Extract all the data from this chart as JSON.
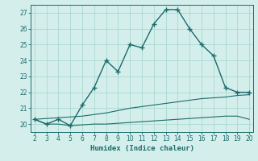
{
  "x": [
    2,
    3,
    4,
    5,
    6,
    7,
    8,
    9,
    10,
    11,
    12,
    13,
    14,
    15,
    16,
    17,
    18,
    19,
    20
  ],
  "y_main": [
    20.3,
    20.0,
    20.3,
    19.9,
    21.2,
    22.3,
    24.0,
    23.3,
    25.0,
    24.8,
    26.3,
    27.2,
    27.2,
    26.0,
    25.0,
    24.3,
    22.3,
    22.0,
    22.0
  ],
  "y_line1": [
    20.3,
    20.35,
    20.4,
    20.45,
    20.5,
    20.6,
    20.7,
    20.85,
    21.0,
    21.1,
    21.2,
    21.3,
    21.4,
    21.5,
    21.6,
    21.65,
    21.7,
    21.8,
    21.85
  ],
  "y_line2": [
    20.3,
    20.0,
    20.0,
    19.9,
    19.95,
    20.0,
    20.0,
    20.05,
    20.1,
    20.15,
    20.2,
    20.25,
    20.3,
    20.35,
    20.4,
    20.45,
    20.5,
    20.5,
    20.3
  ],
  "background_color": "#d4efeb",
  "line_color": "#1a6b6b",
  "grid_color": "#aad8d0",
  "xlabel": "Humidex (Indice chaleur)",
  "ylim": [
    19.5,
    27.5
  ],
  "xlim": [
    1.7,
    20.3
  ],
  "yticks": [
    20,
    21,
    22,
    23,
    24,
    25,
    26,
    27
  ],
  "xticks": [
    2,
    3,
    4,
    5,
    6,
    7,
    8,
    9,
    10,
    11,
    12,
    13,
    14,
    15,
    16,
    17,
    18,
    19,
    20
  ]
}
